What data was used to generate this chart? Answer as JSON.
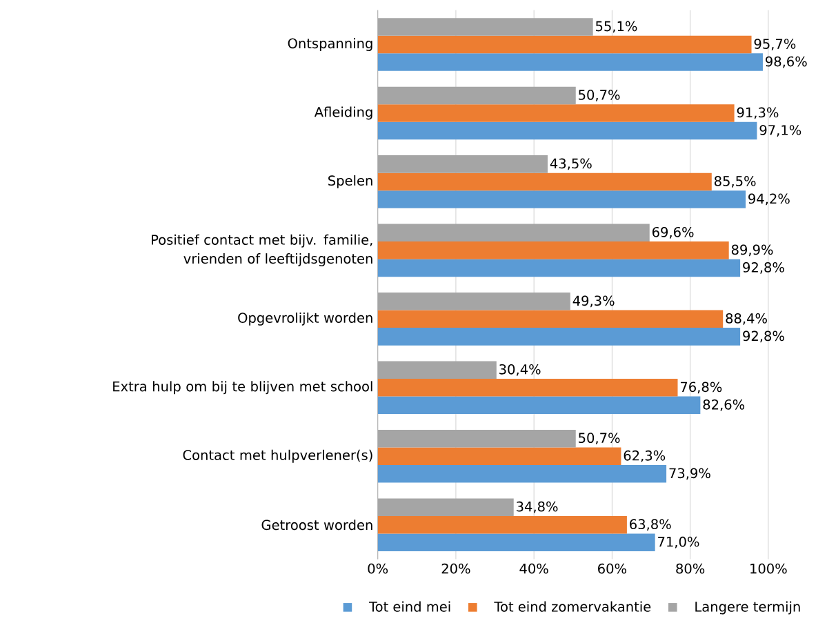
{
  "chart_data": {
    "type": "bar",
    "orientation": "horizontal",
    "categories": [
      "Ontspanning",
      "Afleiding",
      "Spelen",
      "Positief contact met bijv. familie, vrienden of leeftijdsgenoten",
      "Opgevrolijkt worden",
      "Extra hulp om bij te blijven met school",
      "Contact met hulpverlener(s)",
      "Getroost worden"
    ],
    "series": [
      {
        "name": "Tot eind mei",
        "color": "#5b9bd5",
        "values": [
          98.6,
          97.1,
          94.2,
          92.8,
          92.8,
          82.6,
          73.9,
          71.0
        ],
        "value_labels": [
          "98,6%",
          "97,1%",
          "94,2%",
          "92,8%",
          "92,8%",
          "82,6%",
          "73,9%",
          "71,0%"
        ]
      },
      {
        "name": "Tot eind zomervakantie",
        "color": "#ed7d31",
        "values": [
          95.7,
          91.3,
          85.5,
          89.9,
          88.4,
          76.8,
          62.3,
          63.8
        ],
        "value_labels": [
          "95,7%",
          "91,3%",
          "85,5%",
          "89,9%",
          "88,4%",
          "76,8%",
          "62,3%",
          "63,8%"
        ]
      },
      {
        "name": "Langere termijn",
        "color": "#a5a5a5",
        "values": [
          55.1,
          50.7,
          43.5,
          69.6,
          49.3,
          30.4,
          50.7,
          34.8
        ],
        "value_labels": [
          "55,1%",
          "50,7%",
          "43,5%",
          "69,6%",
          "49,3%",
          "30,4%",
          "50,7%",
          "34,8%"
        ]
      }
    ],
    "xlim": [
      0,
      100
    ],
    "xticks": [
      {
        "value": 0,
        "label": "0%"
      },
      {
        "value": 20,
        "label": "20%"
      },
      {
        "value": 40,
        "label": "40%"
      },
      {
        "value": 60,
        "label": "60%"
      },
      {
        "value": 80,
        "label": "80%"
      },
      {
        "value": 100,
        "label": "100%"
      }
    ],
    "grid": "x",
    "legend": "bottom"
  }
}
